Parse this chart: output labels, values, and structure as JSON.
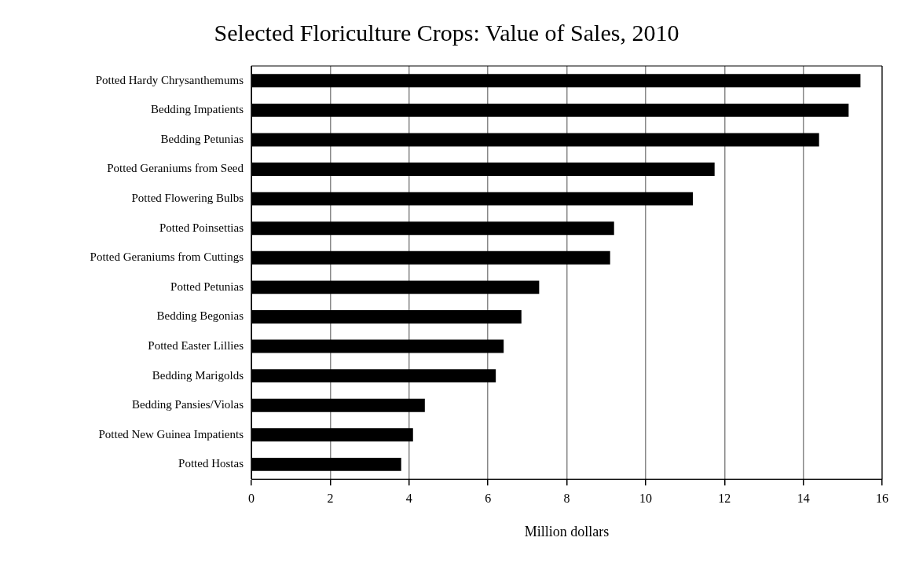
{
  "chart_data": {
    "type": "bar",
    "orientation": "horizontal",
    "title": "Selected Floriculture Crops: Value of Sales, 2010",
    "xlabel": "Million dollars",
    "categories": [
      "Potted Hardy Chrysanthemums",
      "Bedding Impatients",
      "Bedding Petunias",
      "Potted Geraniums from Seed",
      "Potted Flowering Bulbs",
      "Potted Poinsettias",
      "Potted Geraniums from Cuttings",
      "Potted Petunias",
      "Bedding Begonias",
      "Potted Easter Lillies",
      "Bedding Marigolds",
      "Bedding Pansies/Violas",
      "Potted New Guinea Impatients",
      "Potted Hostas"
    ],
    "values": [
      15.45,
      15.15,
      14.4,
      11.75,
      11.2,
      9.2,
      9.1,
      7.3,
      6.85,
      6.4,
      6.2,
      4.4,
      4.1,
      3.8
    ],
    "color": "#000000",
    "xlim": [
      0,
      16
    ],
    "xticks": [
      0,
      2,
      4,
      6,
      8,
      10,
      12,
      14,
      16
    ],
    "grid": "x",
    "legend": false
  }
}
